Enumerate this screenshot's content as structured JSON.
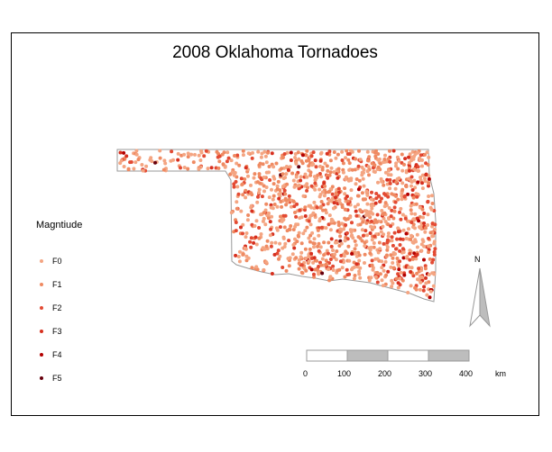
{
  "title": "2008 Oklahoma Tornadoes",
  "legend": {
    "title": "Magntiude",
    "items": [
      {
        "label": "F0",
        "color": "#f4a582"
      },
      {
        "label": "F1",
        "color": "#ef8a62"
      },
      {
        "label": "F2",
        "color": "#e34a33"
      },
      {
        "label": "F3",
        "color": "#d7301f"
      },
      {
        "label": "F4",
        "color": "#b30000"
      },
      {
        "label": "F5",
        "color": "#67000d"
      }
    ]
  },
  "north_arrow": {
    "label": "N"
  },
  "scale_bar": {
    "ticks": [
      "0",
      "100",
      "200",
      "300",
      "400"
    ],
    "unit": "km"
  },
  "map": {
    "outline_color": "#999999",
    "point_count_estimate": 1400
  }
}
